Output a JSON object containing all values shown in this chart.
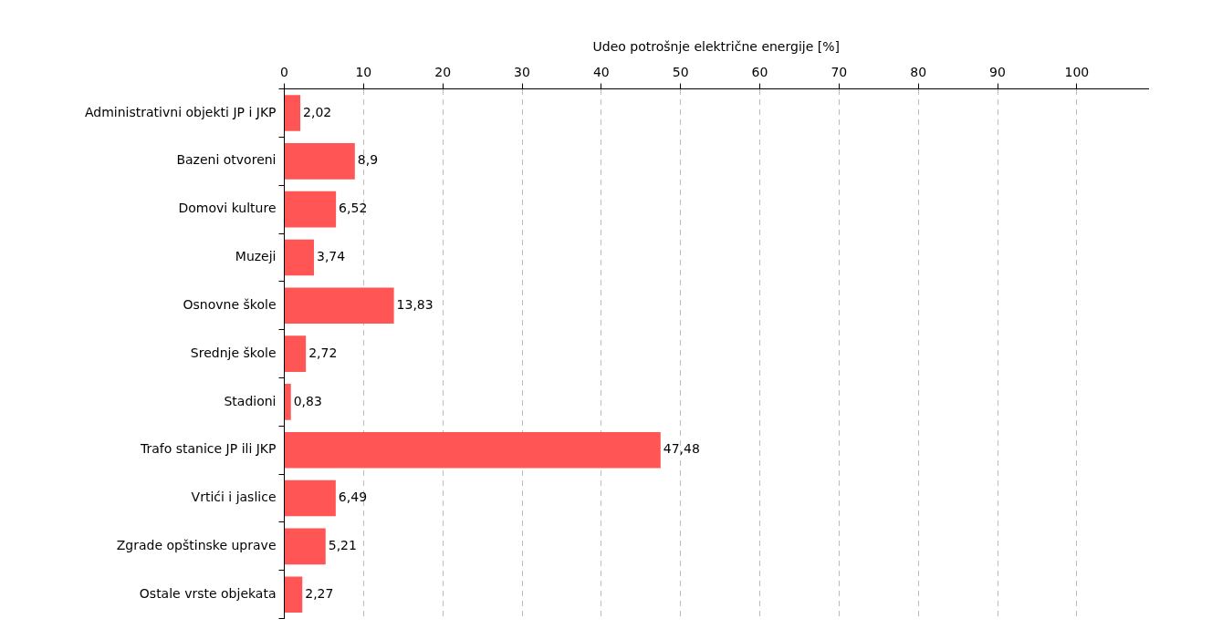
{
  "chart_data": {
    "type": "bar",
    "orientation": "horizontal",
    "xlabel": "Udeo potrošnje električne energije [%]",
    "categories": [
      "Administrativni objekti JP i JKP",
      "Bazeni otvoreni",
      "Domovi kulture",
      "Muzeji",
      "Osnovne škole",
      "Srednje škole",
      "Stadioni",
      "Trafo stanice JP ili JKP",
      "Vrtići i jaslice",
      "Zgrade opštinske uprave",
      "Ostale vrste objekata"
    ],
    "values": [
      2.02,
      8.9,
      6.52,
      3.74,
      13.83,
      2.72,
      0.83,
      47.48,
      6.49,
      5.21,
      2.27
    ],
    "value_labels": [
      "2,02",
      "8,9",
      "6,52",
      "3,74",
      "13,83",
      "2,72",
      "0,83",
      "47,48",
      "6,49",
      "5,21",
      "2,27"
    ],
    "color": "#ff5555",
    "xlim": [
      0,
      109
    ],
    "xticks": [
      0,
      10,
      20,
      30,
      40,
      50,
      60,
      70,
      80,
      90,
      100
    ],
    "grid": "x"
  }
}
